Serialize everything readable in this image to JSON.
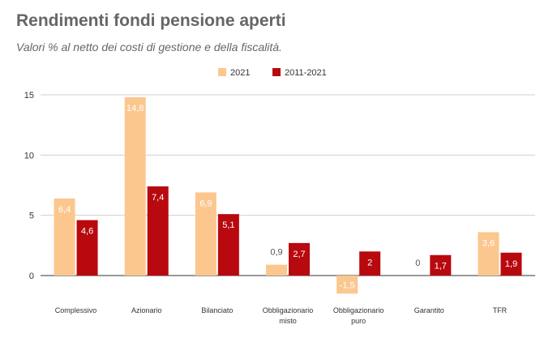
{
  "chart_data": {
    "type": "bar",
    "title": "Rendimenti fondi pensione aperti",
    "subtitle": "Valori % al netto dei costi di gestione e della fiscalità.",
    "categories": [
      [
        "Complessivo"
      ],
      [
        "Azionario"
      ],
      [
        "Bilanciato"
      ],
      [
        "Obbligazionario",
        "misto"
      ],
      [
        "Obbligazionario",
        "puro"
      ],
      [
        "Garantito"
      ],
      [
        "TFR"
      ]
    ],
    "series": [
      {
        "name": "2021",
        "color": "#fcc78e",
        "values": [
          6.4,
          14.8,
          6.9,
          0.9,
          -1.5,
          0,
          3.6
        ],
        "labels": [
          "6,4",
          "14,8",
          "6,9",
          "0,9",
          "-1,5",
          "0",
          "3,6"
        ]
      },
      {
        "name": "2011-2021",
        "color": "#b8090f",
        "values": [
          4.6,
          7.4,
          5.1,
          2.7,
          2,
          1.7,
          1.9
        ],
        "labels": [
          "4,6",
          "7,4",
          "5,1",
          "2,7",
          "2",
          "1,7",
          "1,9"
        ]
      }
    ],
    "yticks": [
      0,
      5,
      10,
      15
    ],
    "ylim": [
      -1.5,
      15
    ],
    "grid": true,
    "legend": "top-center"
  }
}
